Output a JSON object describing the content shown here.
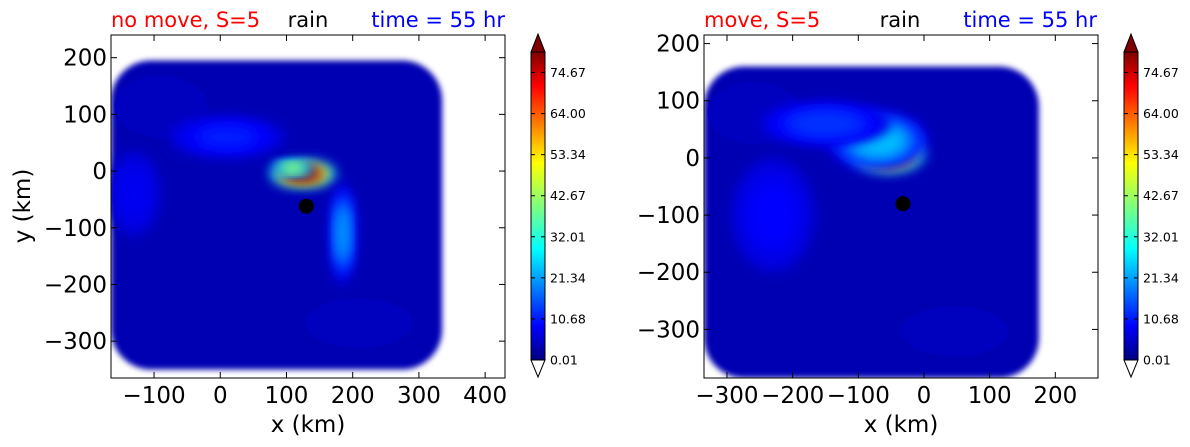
{
  "colors": {
    "left_label": "#ff0000",
    "center_label": "#000000",
    "right_label": "#0000ff",
    "center_marker": "#000000",
    "colormap": "jet"
  },
  "chart_data": [
    {
      "type": "contourf",
      "title_left": "no move, S=5",
      "title_center": "rain",
      "title_right": "time = 55 hr",
      "xlabel": "x (km)",
      "ylabel": "y (km)",
      "xlim": [
        -165,
        430
      ],
      "ylim": [
        -365,
        240
      ],
      "xticks": [
        -100,
        0,
        100,
        200,
        300,
        400
      ],
      "yticks": [
        200,
        100,
        0,
        -100,
        -200,
        -300
      ],
      "center_marker": {
        "x": 130,
        "y": -62
      },
      "colorbar": {
        "ticks": [
          "74.67",
          "64.00",
          "53.34",
          "42.67",
          "32.01",
          "21.34",
          "10.68",
          "0.01"
        ],
        "extend": "both"
      },
      "field": {
        "extent_x": [
          -165,
          335
        ],
        "extent_y": [
          -350,
          195
        ],
        "blobs": [
          {
            "x": 125,
            "y": -5,
            "rx": 40,
            "ry": 18,
            "v": 80
          },
          {
            "x": 110,
            "y": 5,
            "rx": 25,
            "ry": 10,
            "v": 45
          },
          {
            "x": 185,
            "y": -110,
            "rx": 14,
            "ry": 70,
            "v": 22
          },
          {
            "x": 10,
            "y": 60,
            "rx": 70,
            "ry": 28,
            "v": 12
          },
          {
            "x": -130,
            "y": -40,
            "rx": 30,
            "ry": 60,
            "v": 9
          }
        ]
      }
    },
    {
      "type": "contourf",
      "title_left": "move, S=5",
      "title_center": "rain",
      "title_right": "time = 55 hr",
      "xlabel": "x (km)",
      "ylabel": "",
      "xlim": [
        -335,
        265
      ],
      "ylim": [
        -385,
        215
      ],
      "xticks": [
        -300,
        -200,
        -100,
        0,
        100,
        200
      ],
      "yticks": [
        200,
        100,
        0,
        -100,
        -200,
        -300
      ],
      "center_marker": {
        "x": -32,
        "y": -80
      },
      "colorbar": {
        "ticks": [
          "74.67",
          "64.00",
          "53.34",
          "42.67",
          "32.01",
          "21.34",
          "10.68",
          "0.01"
        ],
        "extend": "both"
      },
      "field": {
        "extent_x": [
          -335,
          175
        ],
        "extent_y": [
          -385,
          160
        ],
        "blobs": [
          {
            "x": -55,
            "y": 8,
            "rx": 45,
            "ry": 26,
            "v": 80
          },
          {
            "x": -70,
            "y": 30,
            "rx": 60,
            "ry": 40,
            "v": 25
          },
          {
            "x": -150,
            "y": 60,
            "rx": 80,
            "ry": 30,
            "v": 14
          },
          {
            "x": -230,
            "y": -100,
            "rx": 50,
            "ry": 80,
            "v": 10
          }
        ]
      }
    }
  ]
}
